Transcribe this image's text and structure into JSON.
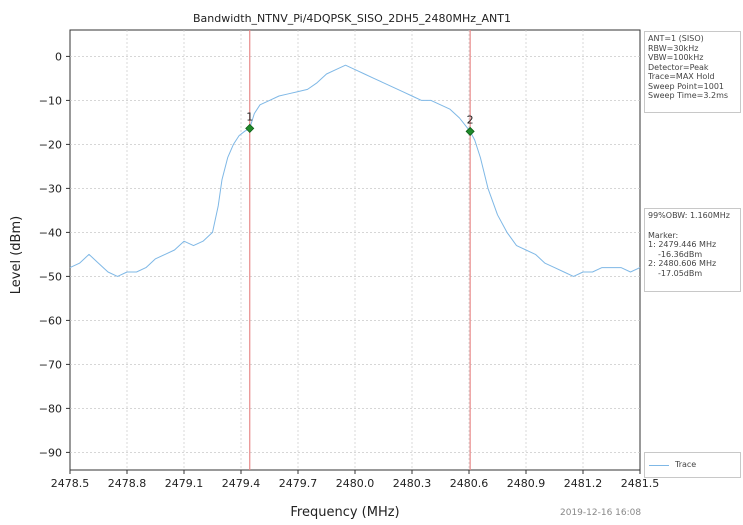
{
  "chart_data": {
    "type": "line",
    "title": "Bandwidth_NTNV_Pi/4DQPSK_SISO_2DH5_2480MHz_ANT1",
    "xlabel": "Frequency (MHz)",
    "ylabel": "Level (dBm)",
    "xlim": [
      2478.5,
      2481.5
    ],
    "ylim": [
      -94,
      6
    ],
    "x_ticks": [
      "2478.5",
      "2478.8",
      "2479.1",
      "2479.4",
      "2479.7",
      "2480.0",
      "2480.3",
      "2480.6",
      "2480.9",
      "2481.2",
      "2481.5"
    ],
    "y_ticks": [
      "0",
      "−10",
      "−20",
      "−30",
      "−40",
      "−50",
      "−60",
      "−70",
      "−80",
      "−90"
    ],
    "grid": true,
    "series": [
      {
        "name": "Trace",
        "color": "#7fb8e6",
        "x": [
          2478.5,
          2478.55,
          2478.6,
          2478.65,
          2478.7,
          2478.75,
          2478.8,
          2478.85,
          2478.9,
          2478.95,
          2479.0,
          2479.05,
          2479.1,
          2479.15,
          2479.2,
          2479.25,
          2479.28,
          2479.3,
          2479.33,
          2479.36,
          2479.39,
          2479.42,
          2479.446,
          2479.47,
          2479.5,
          2479.55,
          2479.6,
          2479.65,
          2479.7,
          2479.75,
          2479.8,
          2479.85,
          2479.9,
          2479.95,
          2480.0,
          2480.05,
          2480.1,
          2480.15,
          2480.2,
          2480.25,
          2480.3,
          2480.35,
          2480.4,
          2480.45,
          2480.5,
          2480.55,
          2480.606,
          2480.63,
          2480.66,
          2480.7,
          2480.75,
          2480.8,
          2480.85,
          2480.9,
          2480.95,
          2481.0,
          2481.05,
          2481.1,
          2481.15,
          2481.2,
          2481.25,
          2481.3,
          2481.35,
          2481.4,
          2481.45,
          2481.5
        ],
        "y": [
          -48,
          -47,
          -45,
          -47,
          -49,
          -50,
          -49,
          -49,
          -48,
          -46,
          -45,
          -44,
          -42,
          -43,
          -42,
          -40,
          -34,
          -28,
          -23,
          -20,
          -18,
          -17,
          -16.36,
          -13,
          -11,
          -10,
          -9,
          -8.5,
          -8,
          -7.5,
          -6,
          -4,
          -3,
          -2,
          -3,
          -4,
          -5,
          -6,
          -7,
          -8,
          -9,
          -10,
          -10,
          -11,
          -12,
          -14,
          -17.05,
          -19,
          -23,
          -30,
          -36,
          -40,
          -43,
          -44,
          -45,
          -47,
          -48,
          -49,
          -50,
          -49,
          -49,
          -48,
          -48,
          -48,
          -49,
          -48
        ]
      }
    ],
    "markers": [
      {
        "label": "1",
        "x": 2479.446,
        "y": -16.36
      },
      {
        "label": "2",
        "x": 2480.606,
        "y": -17.05
      }
    ]
  },
  "settings_lines": [
    "ANT=1 (SISO)",
    "RBW=30kHz",
    "VBW=100kHz",
    "Detector=Peak",
    "Trace=MAX Hold",
    "Sweep Point=1001",
    "Sweep Time=3.2ms"
  ],
  "result": {
    "obw": "99%OBW: 1.160MHz",
    "marker_title": "Marker:",
    "m1_freq": "1: 2479.446 MHz",
    "m1_level": "-16.36dBm",
    "m2_freq": "2: 2480.606 MHz",
    "m2_level": "-17.05dBm"
  },
  "legend_label": "Trace",
  "timestamp": "2019-12-16 16:08"
}
